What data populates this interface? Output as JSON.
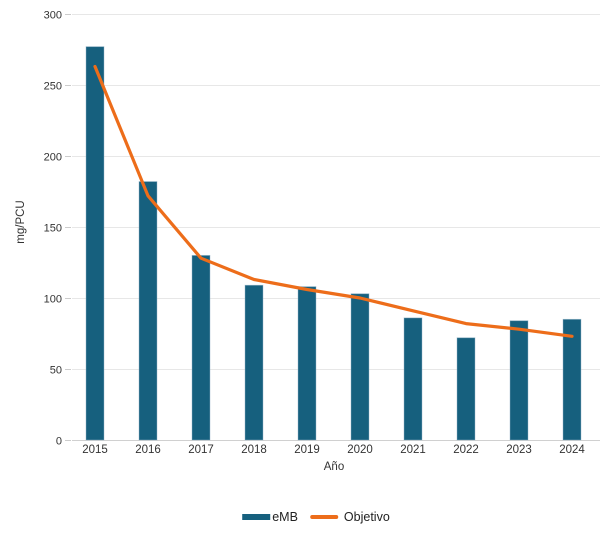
{
  "chart_data": {
    "type": "bar",
    "subtype": "bar-and-line-combo",
    "title": "",
    "xlabel": "Año",
    "ylabel": "mg/PCU",
    "categories": [
      "2015",
      "2016",
      "2017",
      "2018",
      "2019",
      "2020",
      "2021",
      "2022",
      "2023",
      "2024"
    ],
    "series": [
      {
        "name": "eMB",
        "type": "bar",
        "color": "#16607e",
        "values": [
          277,
          182,
          130,
          109,
          108,
          103,
          86,
          72,
          84,
          85
        ]
      },
      {
        "name": "Objetivo",
        "type": "line",
        "color": "#ed6d1a",
        "values": [
          263,
          172,
          128,
          113,
          106,
          100,
          91,
          82,
          78,
          73
        ]
      }
    ],
    "ylim": [
      0,
      300
    ],
    "ytick_interval": 50,
    "yticks": [
      0,
      50,
      100,
      150,
      200,
      250,
      300
    ],
    "grid": true,
    "legend_position": "bottom",
    "colors": {
      "bar": "#16607e",
      "line": "#ed6d1a",
      "gridline": "#e7e7e7",
      "axis_line": "#d0d0d0",
      "tick_mark": "#cccccc",
      "tick_text": "#333333"
    }
  }
}
